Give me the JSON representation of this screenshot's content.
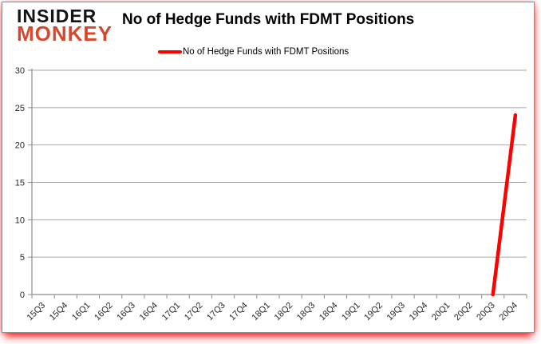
{
  "logo": {
    "line1": "INSIDER",
    "line2": "MONKEY",
    "line1_color": "#141414",
    "line2_color": "#d9472b"
  },
  "header": {
    "title": "No of Hedge Funds with FDMT Positions"
  },
  "legend": {
    "label": "No of Hedge Funds with FDMT Positions",
    "color": "#ff0000"
  },
  "chart_data": {
    "type": "line",
    "title": "No of Hedge Funds with FDMT Positions",
    "xlabel": "",
    "ylabel": "",
    "categories": [
      "15Q3",
      "15Q4",
      "16Q1",
      "16Q2",
      "16Q3",
      "16Q4",
      "17Q1",
      "17Q2",
      "17Q3",
      "17Q4",
      "18Q1",
      "18Q2",
      "18Q3",
      "18Q4",
      "19Q1",
      "19Q2",
      "19Q3",
      "19Q4",
      "20Q1",
      "20Q2",
      "20Q3",
      "20Q4"
    ],
    "series": [
      {
        "name": "No of Hedge Funds with FDMT Positions",
        "color": "#ff0000",
        "values": [
          null,
          null,
          null,
          null,
          null,
          null,
          null,
          null,
          null,
          null,
          null,
          null,
          null,
          null,
          null,
          null,
          null,
          null,
          null,
          null,
          0,
          24
        ]
      }
    ],
    "ylim": [
      0,
      30
    ],
    "ytick_step": 5,
    "grid": true,
    "legend_position": "top-center",
    "colors": {
      "gridline": "#a6a6a6",
      "axis": "#8c8c8c",
      "tick_label": "#262626"
    }
  }
}
